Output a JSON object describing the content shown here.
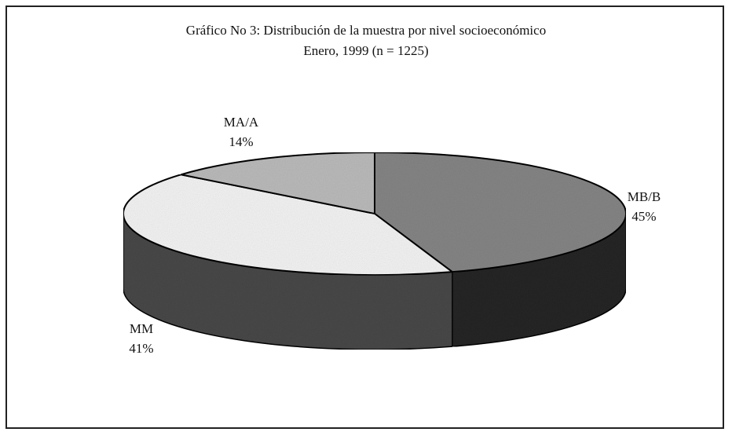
{
  "chart_data": {
    "type": "pie",
    "title": "Gráfico No 3:  Distribución de la muestra por nivel socioeconómico",
    "subtitle": "Enero, 1999 (n = 1225)",
    "categories": [
      "MB/B",
      "MM",
      "MA/A"
    ],
    "values": [
      45,
      41,
      14
    ],
    "value_labels": [
      "45%",
      "41%",
      "14%"
    ],
    "colors": [
      "#8c8c8c",
      "#ffffff",
      "#c4c4c4"
    ]
  }
}
